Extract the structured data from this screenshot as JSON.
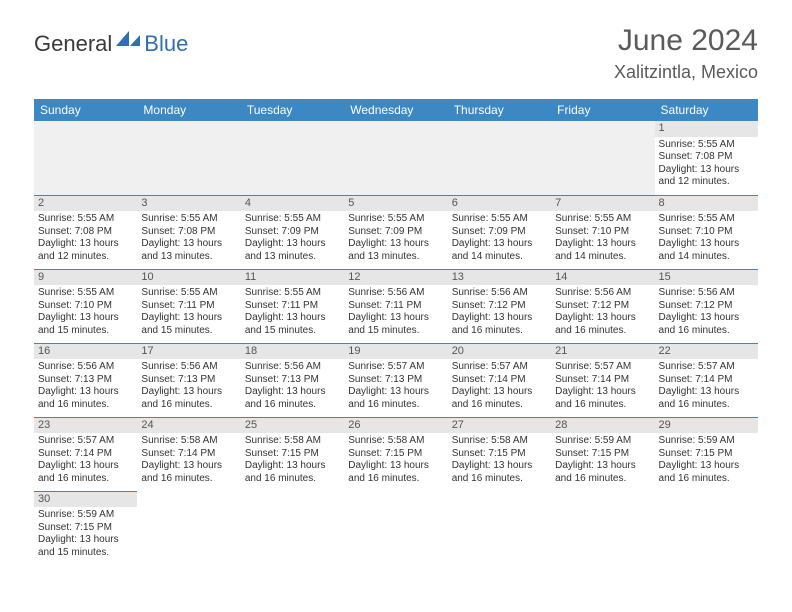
{
  "logo": {
    "text1": "General",
    "text2": "Blue"
  },
  "title": "June 2024",
  "location": "Xalitzintla, Mexico",
  "colors": {
    "header_bg": "#3b88c4",
    "header_text": "#ffffff",
    "daynum_bg": "#e6e6e6",
    "cell_border": "#3b88c4",
    "empty_bg": "#f0f0f0",
    "title_color": "#5a5a5a",
    "logo_gray": "#3a3a3a",
    "logo_blue": "#2f6fb0"
  },
  "weekdays": [
    "Sunday",
    "Monday",
    "Tuesday",
    "Wednesday",
    "Thursday",
    "Friday",
    "Saturday"
  ],
  "weeks": [
    [
      null,
      null,
      null,
      null,
      null,
      null,
      {
        "n": "1",
        "sr": "Sunrise: 5:55 AM",
        "ss": "Sunset: 7:08 PM",
        "d1": "Daylight: 13 hours",
        "d2": "and 12 minutes."
      }
    ],
    [
      {
        "n": "2",
        "sr": "Sunrise: 5:55 AM",
        "ss": "Sunset: 7:08 PM",
        "d1": "Daylight: 13 hours",
        "d2": "and 12 minutes."
      },
      {
        "n": "3",
        "sr": "Sunrise: 5:55 AM",
        "ss": "Sunset: 7:08 PM",
        "d1": "Daylight: 13 hours",
        "d2": "and 13 minutes."
      },
      {
        "n": "4",
        "sr": "Sunrise: 5:55 AM",
        "ss": "Sunset: 7:09 PM",
        "d1": "Daylight: 13 hours",
        "d2": "and 13 minutes."
      },
      {
        "n": "5",
        "sr": "Sunrise: 5:55 AM",
        "ss": "Sunset: 7:09 PM",
        "d1": "Daylight: 13 hours",
        "d2": "and 13 minutes."
      },
      {
        "n": "6",
        "sr": "Sunrise: 5:55 AM",
        "ss": "Sunset: 7:09 PM",
        "d1": "Daylight: 13 hours",
        "d2": "and 14 minutes."
      },
      {
        "n": "7",
        "sr": "Sunrise: 5:55 AM",
        "ss": "Sunset: 7:10 PM",
        "d1": "Daylight: 13 hours",
        "d2": "and 14 minutes."
      },
      {
        "n": "8",
        "sr": "Sunrise: 5:55 AM",
        "ss": "Sunset: 7:10 PM",
        "d1": "Daylight: 13 hours",
        "d2": "and 14 minutes."
      }
    ],
    [
      {
        "n": "9",
        "sr": "Sunrise: 5:55 AM",
        "ss": "Sunset: 7:10 PM",
        "d1": "Daylight: 13 hours",
        "d2": "and 15 minutes."
      },
      {
        "n": "10",
        "sr": "Sunrise: 5:55 AM",
        "ss": "Sunset: 7:11 PM",
        "d1": "Daylight: 13 hours",
        "d2": "and 15 minutes."
      },
      {
        "n": "11",
        "sr": "Sunrise: 5:55 AM",
        "ss": "Sunset: 7:11 PM",
        "d1": "Daylight: 13 hours",
        "d2": "and 15 minutes."
      },
      {
        "n": "12",
        "sr": "Sunrise: 5:56 AM",
        "ss": "Sunset: 7:11 PM",
        "d1": "Daylight: 13 hours",
        "d2": "and 15 minutes."
      },
      {
        "n": "13",
        "sr": "Sunrise: 5:56 AM",
        "ss": "Sunset: 7:12 PM",
        "d1": "Daylight: 13 hours",
        "d2": "and 16 minutes."
      },
      {
        "n": "14",
        "sr": "Sunrise: 5:56 AM",
        "ss": "Sunset: 7:12 PM",
        "d1": "Daylight: 13 hours",
        "d2": "and 16 minutes."
      },
      {
        "n": "15",
        "sr": "Sunrise: 5:56 AM",
        "ss": "Sunset: 7:12 PM",
        "d1": "Daylight: 13 hours",
        "d2": "and 16 minutes."
      }
    ],
    [
      {
        "n": "16",
        "sr": "Sunrise: 5:56 AM",
        "ss": "Sunset: 7:13 PM",
        "d1": "Daylight: 13 hours",
        "d2": "and 16 minutes."
      },
      {
        "n": "17",
        "sr": "Sunrise: 5:56 AM",
        "ss": "Sunset: 7:13 PM",
        "d1": "Daylight: 13 hours",
        "d2": "and 16 minutes."
      },
      {
        "n": "18",
        "sr": "Sunrise: 5:56 AM",
        "ss": "Sunset: 7:13 PM",
        "d1": "Daylight: 13 hours",
        "d2": "and 16 minutes."
      },
      {
        "n": "19",
        "sr": "Sunrise: 5:57 AM",
        "ss": "Sunset: 7:13 PM",
        "d1": "Daylight: 13 hours",
        "d2": "and 16 minutes."
      },
      {
        "n": "20",
        "sr": "Sunrise: 5:57 AM",
        "ss": "Sunset: 7:14 PM",
        "d1": "Daylight: 13 hours",
        "d2": "and 16 minutes."
      },
      {
        "n": "21",
        "sr": "Sunrise: 5:57 AM",
        "ss": "Sunset: 7:14 PM",
        "d1": "Daylight: 13 hours",
        "d2": "and 16 minutes."
      },
      {
        "n": "22",
        "sr": "Sunrise: 5:57 AM",
        "ss": "Sunset: 7:14 PM",
        "d1": "Daylight: 13 hours",
        "d2": "and 16 minutes."
      }
    ],
    [
      {
        "n": "23",
        "sr": "Sunrise: 5:57 AM",
        "ss": "Sunset: 7:14 PM",
        "d1": "Daylight: 13 hours",
        "d2": "and 16 minutes."
      },
      {
        "n": "24",
        "sr": "Sunrise: 5:58 AM",
        "ss": "Sunset: 7:14 PM",
        "d1": "Daylight: 13 hours",
        "d2": "and 16 minutes."
      },
      {
        "n": "25",
        "sr": "Sunrise: 5:58 AM",
        "ss": "Sunset: 7:15 PM",
        "d1": "Daylight: 13 hours",
        "d2": "and 16 minutes."
      },
      {
        "n": "26",
        "sr": "Sunrise: 5:58 AM",
        "ss": "Sunset: 7:15 PM",
        "d1": "Daylight: 13 hours",
        "d2": "and 16 minutes."
      },
      {
        "n": "27",
        "sr": "Sunrise: 5:58 AM",
        "ss": "Sunset: 7:15 PM",
        "d1": "Daylight: 13 hours",
        "d2": "and 16 minutes."
      },
      {
        "n": "28",
        "sr": "Sunrise: 5:59 AM",
        "ss": "Sunset: 7:15 PM",
        "d1": "Daylight: 13 hours",
        "d2": "and 16 minutes."
      },
      {
        "n": "29",
        "sr": "Sunrise: 5:59 AM",
        "ss": "Sunset: 7:15 PM",
        "d1": "Daylight: 13 hours",
        "d2": "and 16 minutes."
      }
    ],
    [
      {
        "n": "30",
        "sr": "Sunrise: 5:59 AM",
        "ss": "Sunset: 7:15 PM",
        "d1": "Daylight: 13 hours",
        "d2": "and 15 minutes."
      },
      null,
      null,
      null,
      null,
      null,
      null
    ]
  ]
}
